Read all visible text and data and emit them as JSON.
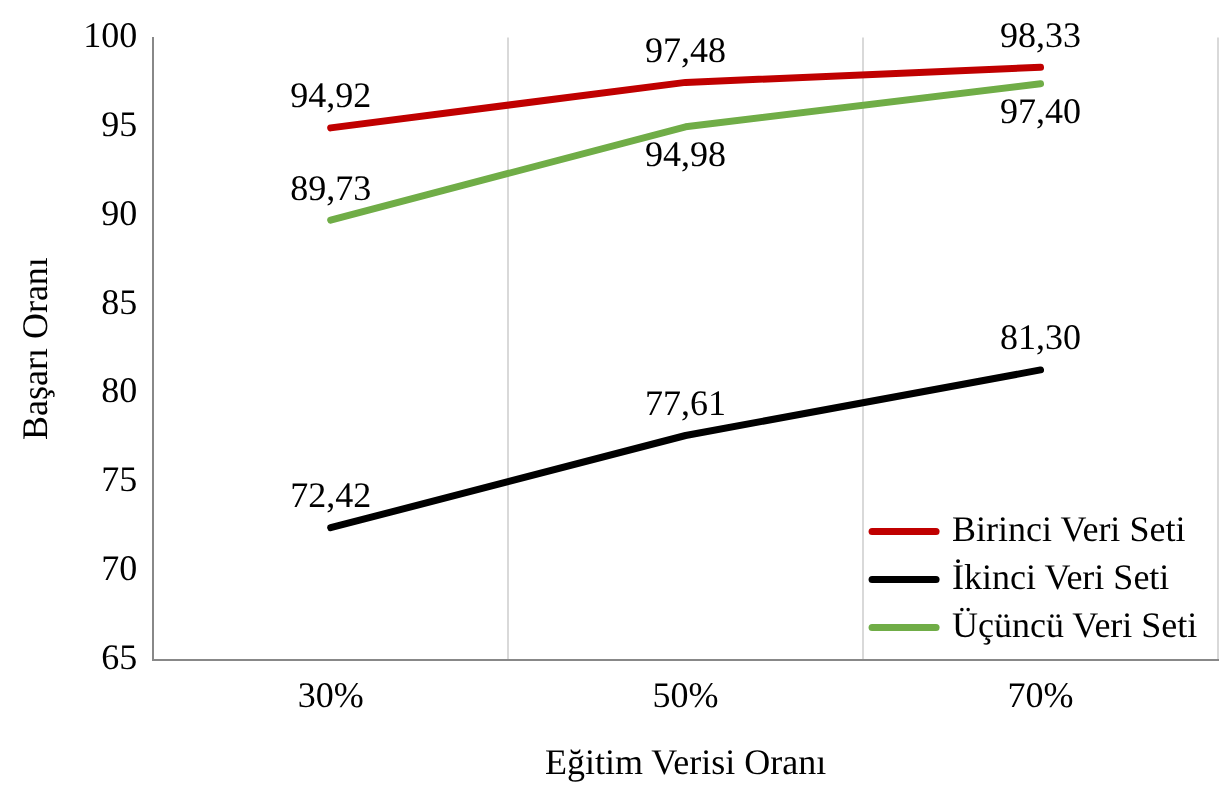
{
  "chart_data": {
    "type": "line",
    "xlabel": "Eğitim Verisi Oranı",
    "ylabel": "Başarı Oranı",
    "categories": [
      "30%",
      "50%",
      "70%"
    ],
    "series": [
      {
        "name": "Birinci Veri Seti",
        "color": "#c00000",
        "values": [
          94.92,
          97.48,
          98.33
        ],
        "value_labels": [
          "94,92",
          "97,48",
          "98,33"
        ]
      },
      {
        "name": "İkinci Veri Seti",
        "color": "#000000",
        "values": [
          72.42,
          77.61,
          81.3
        ],
        "value_labels": [
          "72,42",
          "77,61",
          "81,30"
        ]
      },
      {
        "name": "Üçüncü Veri Seti",
        "color": "#70ad47",
        "values": [
          89.73,
          94.98,
          97.4
        ],
        "value_labels": [
          "89,73",
          "94,98",
          "97,40"
        ]
      }
    ],
    "ylim": [
      65,
      100
    ],
    "yticks": [
      65,
      70,
      75,
      80,
      85,
      90,
      95,
      100
    ],
    "grid": "x",
    "legend": "bottom right",
    "marker": "none",
    "line_style": "solid"
  }
}
